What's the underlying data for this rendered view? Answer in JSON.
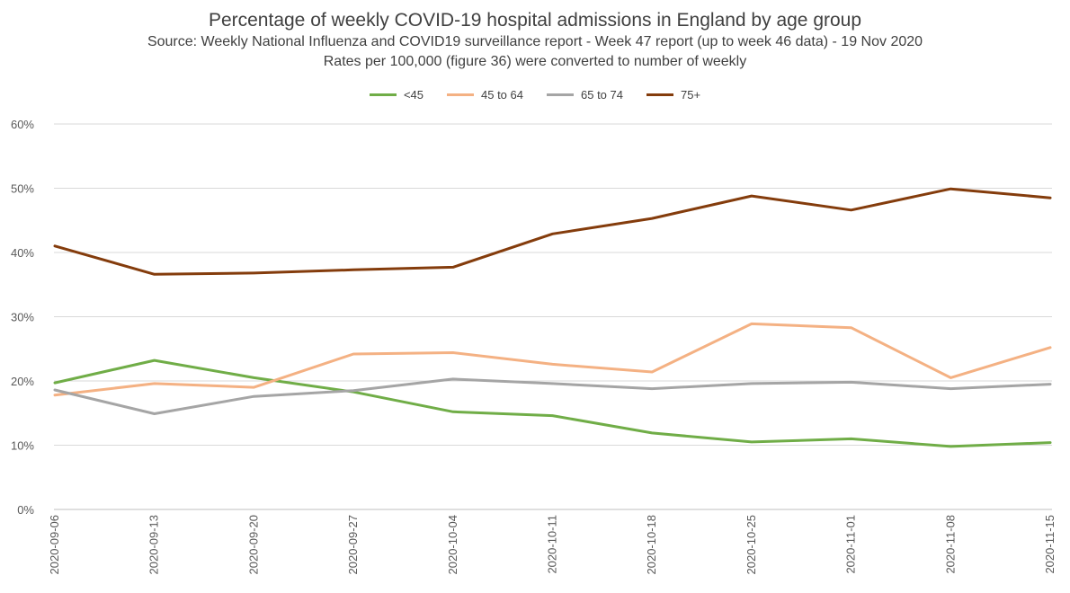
{
  "chart_data": {
    "type": "line",
    "title": "Percentage of weekly COVID-19 hospital admissions in England by age group",
    "subtitle_lines": [
      "Source: Weekly National Influenza and COVID19 surveillance report - Week 47 report (up to week 46 data) - 19 Nov 2020",
      "Rates per 100,000 (figure 36) were converted to number of weekly"
    ],
    "categories": [
      "2020-09-06",
      "2020-09-13",
      "2020-09-20",
      "2020-09-27",
      "2020-10-04",
      "2020-10-11",
      "2020-10-18",
      "2020-10-25",
      "2020-11-01",
      "2020-11-08",
      "2020-11-15"
    ],
    "ylim": [
      0,
      60
    ],
    "yticks": [
      "0%",
      "10%",
      "20%",
      "30%",
      "40%",
      "50%",
      "60%"
    ],
    "grid": true,
    "legend_position": "top",
    "series": [
      {
        "name": "<45",
        "color": "#70ad47",
        "values": [
          19.7,
          23.2,
          20.5,
          18.3,
          15.2,
          14.6,
          11.9,
          10.5,
          11.0,
          9.8,
          10.4
        ]
      },
      {
        "name": "45 to 64",
        "color": "#f4b183",
        "values": [
          17.8,
          19.6,
          19.0,
          24.2,
          24.4,
          22.6,
          21.4,
          28.9,
          28.3,
          20.5,
          25.2
        ]
      },
      {
        "name": "65 to 74",
        "color": "#a5a5a5",
        "values": [
          18.6,
          14.9,
          17.6,
          18.5,
          20.3,
          19.6,
          18.8,
          19.6,
          19.8,
          18.8,
          19.5
        ]
      },
      {
        "name": "75+",
        "color": "#843c0c",
        "values": [
          41.0,
          36.6,
          36.8,
          37.3,
          37.7,
          42.9,
          45.3,
          48.8,
          46.6,
          49.9,
          48.5
        ]
      }
    ]
  }
}
